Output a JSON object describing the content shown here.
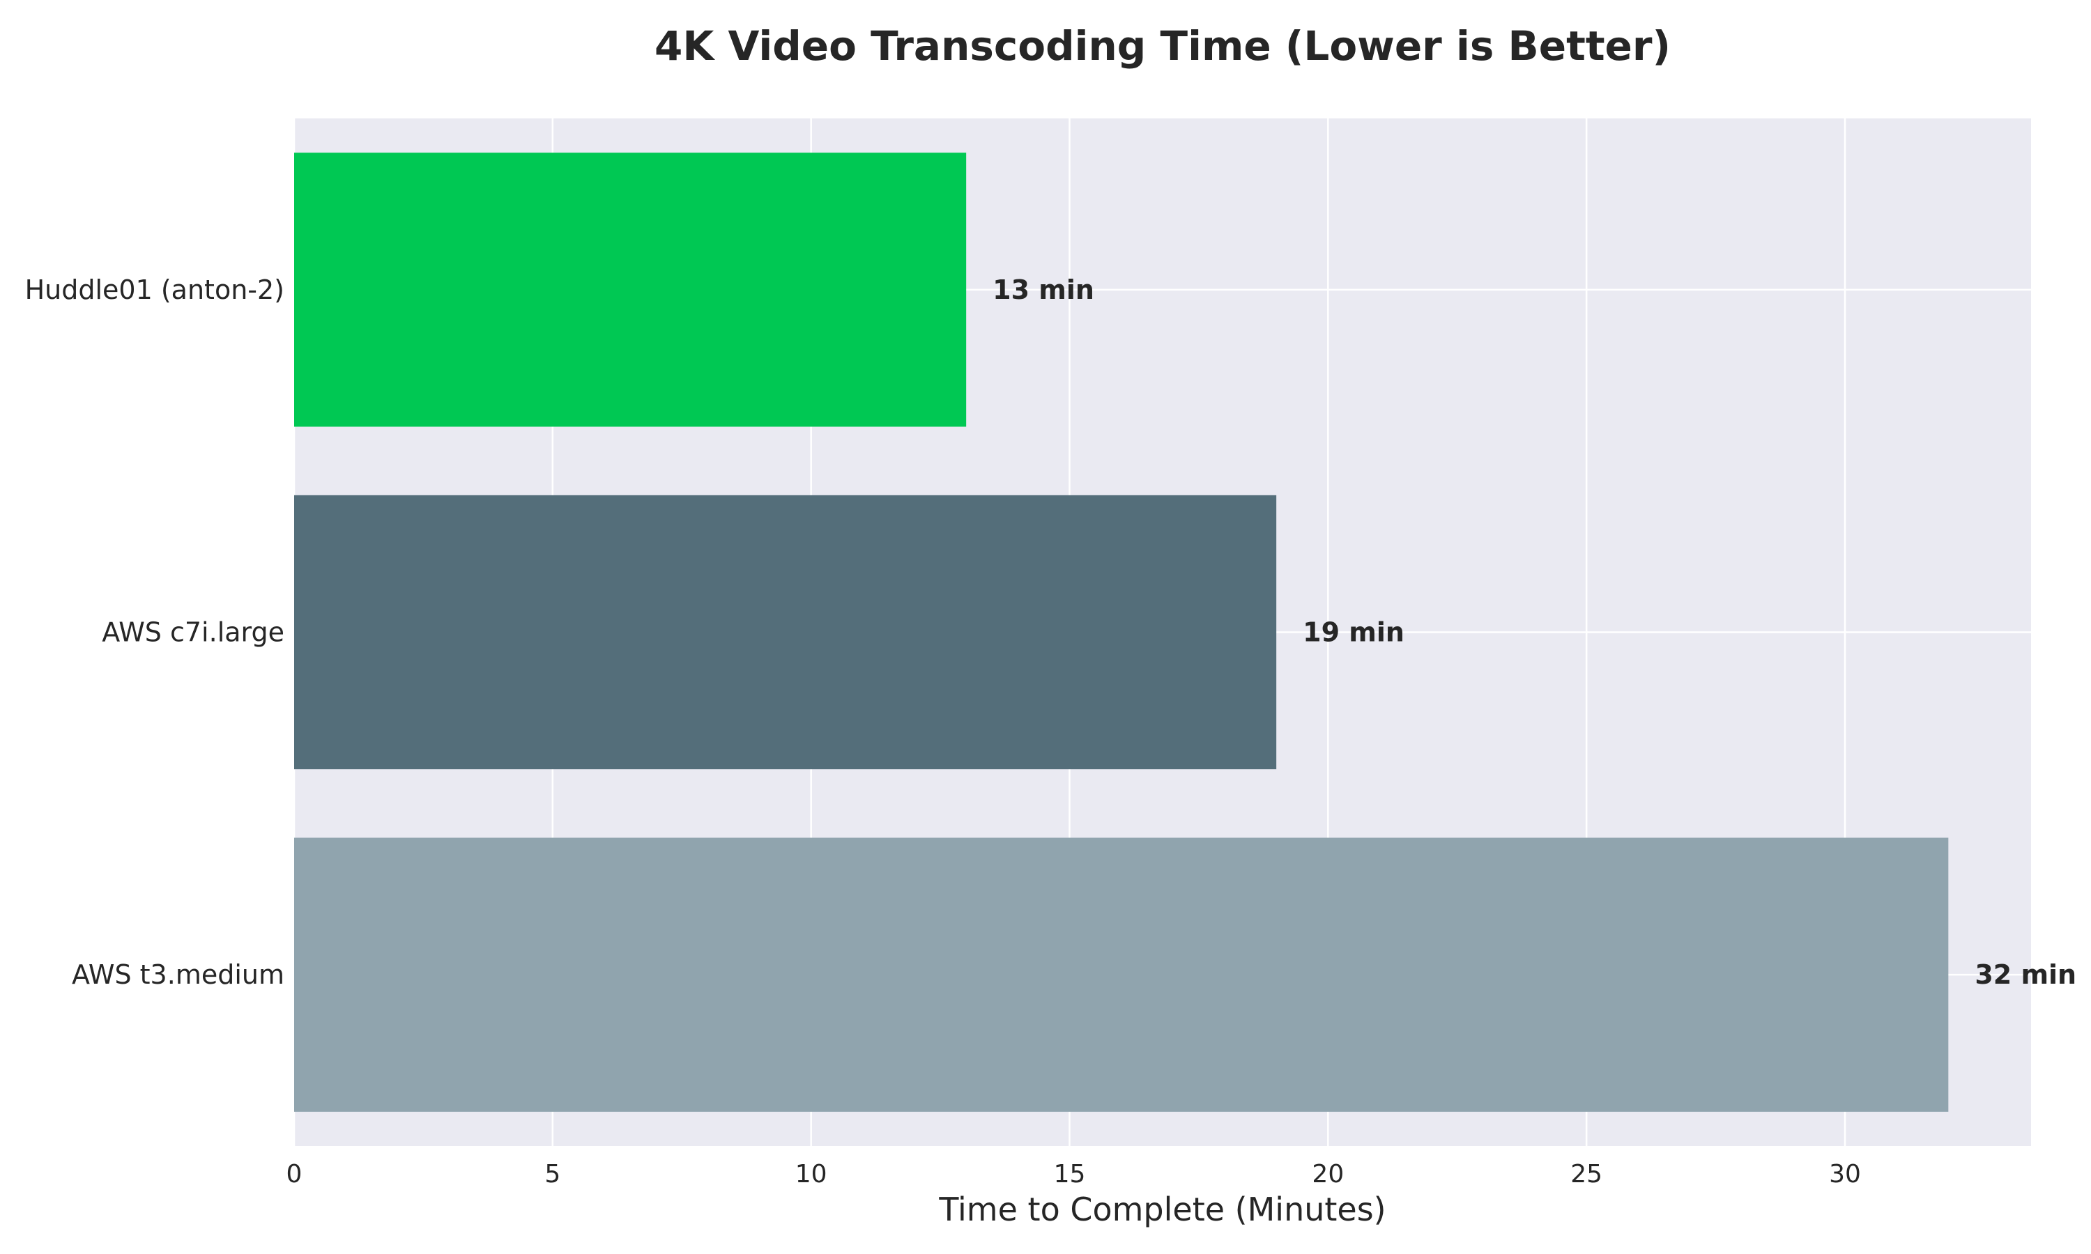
{
  "chart_data": {
    "type": "bar",
    "orientation": "horizontal",
    "title": "4K Video Transcoding Time (Lower is Better)",
    "xlabel": "Time to Complete (Minutes)",
    "ylabel": "",
    "categories": [
      "Huddle01 (anton-2)",
      "AWS c7i.large",
      "AWS t3.medium"
    ],
    "values": [
      13,
      19,
      32
    ],
    "data_labels": [
      "13 min",
      "19 min",
      "32 min"
    ],
    "colors": [
      "#00c853",
      "#546e7a",
      "#90a4ae"
    ],
    "xlim": [
      0,
      33.6
    ],
    "xticks": [
      0,
      5,
      10,
      15,
      20,
      25,
      30
    ],
    "grid": true,
    "background": "#eaeaf2",
    "gridline_color": "#ffffff"
  }
}
